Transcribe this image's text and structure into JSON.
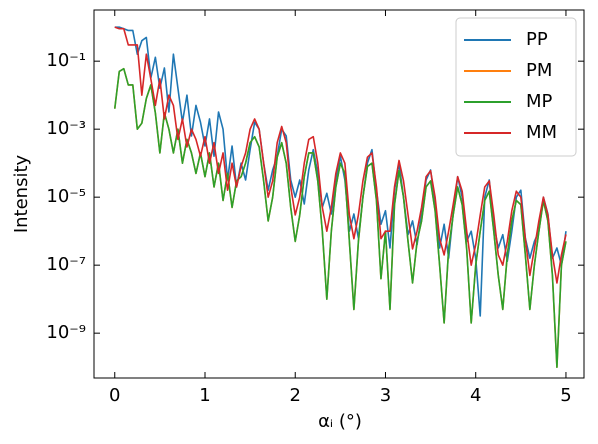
{
  "chart_data": {
    "type": "line",
    "xlabel": "αᵢ (°)",
    "ylabel": "Intensity",
    "log_y": true,
    "legend": "upper right",
    "x": [
      0,
      0.05,
      0.1,
      0.15,
      0.2,
      0.25,
      0.3,
      0.35,
      0.4,
      0.45,
      0.5,
      0.55,
      0.6,
      0.65,
      0.7,
      0.75,
      0.8,
      0.85,
      0.9,
      0.95,
      1,
      1.05,
      1.1,
      1.15,
      1.2,
      1.25,
      1.3,
      1.35,
      1.4,
      1.45,
      1.5,
      1.55,
      1.6,
      1.65,
      1.7,
      1.75,
      1.8,
      1.85,
      1.9,
      1.95,
      2,
      2.05,
      2.1,
      2.15,
      2.2,
      2.25,
      2.3,
      2.35,
      2.4,
      2.45,
      2.5,
      2.55,
      2.6,
      2.65,
      2.7,
      2.75,
      2.8,
      2.85,
      2.9,
      2.95,
      3,
      3.05,
      3.1,
      3.15,
      3.2,
      3.25,
      3.3,
      3.35,
      3.4,
      3.45,
      3.5,
      3.55,
      3.6,
      3.65,
      3.7,
      3.75,
      3.8,
      3.85,
      3.9,
      3.95,
      4,
      4.05,
      4.1,
      4.15,
      4.2,
      4.25,
      4.3,
      4.35,
      4.4,
      4.45,
      4.5,
      4.55,
      4.6,
      4.65,
      4.7,
      4.75,
      4.8,
      4.85,
      4.9,
      4.95,
      5
    ],
    "series": [
      {
        "name": "PP",
        "color": "#1f77b4",
        "values": [
          1,
          1,
          0.9,
          0.8,
          0.8,
          0.16,
          0.4,
          0.5,
          0.032,
          0.13,
          0.016,
          0.063,
          0.0032,
          0.16,
          0.016,
          0.0016,
          0.01,
          0.00063,
          0.005,
          0.0016,
          0.00032,
          0.002,
          0.00016,
          0.0032,
          0.001,
          3.2e-05,
          0.00032,
          2e-05,
          0.0001,
          3.2e-05,
          0.00025,
          0.0016,
          0.001,
          0.0001,
          1.6e-05,
          6.3e-05,
          0.00016,
          0.001,
          0.00063,
          3.2e-05,
          1e-05,
          3.2e-05,
          6.3e-06,
          6.3e-05,
          0.00025,
          5e-05,
          5e-06,
          1.3e-05,
          3.2e-06,
          3.2e-05,
          0.00016,
          3.2e-05,
          1e-06,
          3.2e-06,
          6.3e-07,
          1e-05,
          0.0001,
          0.00025,
          1.6e-05,
          1.6e-06,
          4e-06,
          3.2e-07,
          1.6e-05,
          0.0001,
          1e-05,
          7.9e-07,
          2e-06,
          4e-07,
          3.2e-06,
          3.2e-05,
          6.3e-05,
          6.3e-06,
          3.2e-07,
          1.6e-06,
          1.6e-07,
          3.2e-06,
          4e-05,
          1e-05,
          5e-07,
          1e-06,
          1.6e-07,
          3.2e-09,
          1e-05,
          3.2e-05,
          1.6e-06,
          3.2e-07,
          7.9e-07,
          1.3e-07,
          1e-06,
          1e-05,
          1.6e-05,
          6.3e-07,
          1.6e-07,
          5e-07,
          1e-06,
          1e-05,
          3.2e-06,
          1.6e-07,
          3.2e-07,
          1e-07,
          1e-06
        ]
      },
      {
        "name": "PM",
        "color": "#ff7f0e",
        "values": [
          0.004,
          0.05,
          0.06,
          0.02,
          0.02,
          0.001,
          0.0015,
          0.008,
          0.02,
          0.003,
          0.0002,
          0.003,
          0.001,
          0.0002,
          0.001,
          0.0001,
          0.0005,
          0.0002,
          5e-05,
          0.0002,
          4e-05,
          0.0002,
          2e-05,
          0.0001,
          8e-06,
          5e-05,
          5e-06,
          3e-05,
          4e-05,
          0.0001,
          0.0004,
          0.0006,
          0.0003,
          3e-05,
          2e-06,
          1e-05,
          0.00015,
          0.0004,
          0.0001,
          5e-06,
          5e-07,
          3e-06,
          4e-05,
          0.0002,
          0.0002,
          3e-05,
          1e-06,
          1e-08,
          1e-06,
          2e-05,
          0.0001,
          5e-05,
          5e-07,
          5e-09,
          5e-07,
          1e-05,
          8e-05,
          0.0001,
          8e-06,
          4e-08,
          1e-06,
          5e-09,
          6e-06,
          6e-05,
          1e-05,
          5e-07,
          3e-08,
          5e-07,
          2e-06,
          2e-05,
          3e-05,
          4e-06,
          1e-07,
          2e-09,
          3e-07,
          3e-06,
          2e-05,
          6e-06,
          3e-07,
          2e-09,
          1e-07,
          1e-06,
          8e-06,
          1.5e-05,
          1e-06,
          5e-08,
          5e-09,
          2e-07,
          2e-06,
          8e-06,
          6e-06,
          2e-07,
          5e-09,
          1e-07,
          1e-06,
          8e-06,
          2e-06,
          5e-08,
          1e-10,
          1e-07,
          5e-07
        ]
      },
      {
        "name": "MP",
        "color": "#2ca02c",
        "values": [
          0.004,
          0.05,
          0.06,
          0.02,
          0.02,
          0.001,
          0.0015,
          0.008,
          0.02,
          0.003,
          0.0002,
          0.003,
          0.001,
          0.0002,
          0.001,
          0.0001,
          0.0005,
          0.0002,
          5e-05,
          0.0002,
          4e-05,
          0.0002,
          2e-05,
          0.0001,
          8e-06,
          5e-05,
          5e-06,
          3e-05,
          4e-05,
          0.0001,
          0.0004,
          0.0006,
          0.0003,
          3e-05,
          2e-06,
          1e-05,
          0.00015,
          0.0004,
          0.0001,
          5e-06,
          5e-07,
          3e-06,
          4e-05,
          0.0002,
          0.0002,
          3e-05,
          1e-06,
          1e-08,
          1e-06,
          2e-05,
          0.0001,
          5e-05,
          5e-07,
          5e-09,
          5e-07,
          1e-05,
          8e-05,
          0.0001,
          8e-06,
          4e-08,
          1e-06,
          5e-09,
          6e-06,
          6e-05,
          1e-05,
          5e-07,
          3e-08,
          5e-07,
          2e-06,
          2e-05,
          3e-05,
          4e-06,
          1e-07,
          2e-09,
          3e-07,
          3e-06,
          2e-05,
          6e-06,
          3e-07,
          2e-09,
          1e-07,
          1e-06,
          8e-06,
          1.5e-05,
          1e-06,
          5e-08,
          5e-09,
          2e-07,
          2e-06,
          8e-06,
          6e-06,
          2e-07,
          5e-09,
          1e-07,
          1e-06,
          8e-06,
          2e-06,
          5e-08,
          1e-10,
          1e-07,
          5e-07
        ]
      },
      {
        "name": "MM",
        "color": "#d62728",
        "values": [
          1,
          0.9,
          0.9,
          0.3,
          0.3,
          0.3,
          0.01,
          0.16,
          0.03,
          0.005,
          0.03,
          0.002,
          0.01,
          0.005,
          0.0005,
          0.002,
          0.0003,
          0.001,
          0.0005,
          0.00016,
          0.0006,
          0.0001,
          0.0004,
          5e-05,
          0.0002,
          1.6e-05,
          0.0001,
          2e-05,
          8e-05,
          0.0002,
          0.001,
          0.002,
          0.001,
          0.0001,
          1e-05,
          3e-05,
          0.0004,
          0.0012,
          0.0004,
          2e-05,
          3e-06,
          1e-05,
          0.0001,
          0.0005,
          0.0006,
          0.0001,
          5e-06,
          1e-06,
          5e-06,
          5e-05,
          0.0002,
          0.0001,
          3e-06,
          6e-07,
          3e-06,
          3e-05,
          0.00015,
          0.0002,
          2e-05,
          6e-07,
          1e-06,
          1e-06,
          2e-05,
          0.00012,
          3e-05,
          3e-06,
          3e-07,
          1e-06,
          5e-06,
          4e-05,
          6e-05,
          1e-05,
          6e-07,
          2e-07,
          1e-06,
          6e-06,
          4e-05,
          1.5e-05,
          1e-06,
          1e-07,
          4e-07,
          3e-06,
          2e-05,
          3e-05,
          3e-06,
          2e-07,
          1e-07,
          5e-07,
          4e-06,
          1.5e-05,
          1e-05,
          6e-07,
          5e-08,
          3e-07,
          2e-06,
          1e-05,
          3e-06,
          2e-07,
          3e-08,
          2e-07,
          8e-07
        ]
      }
    ],
    "xlim": [
      -0.23,
      5.2
    ],
    "ylim": [
      4.8e-11,
      3.2
    ],
    "xticks": [
      0,
      1,
      2,
      3,
      4,
      5
    ],
    "yticks": [
      {
        "value": 1e-09,
        "label": "10⁻⁹"
      },
      {
        "value": 1e-07,
        "label": "10⁻⁷"
      },
      {
        "value": 1e-05,
        "label": "10⁻⁵"
      },
      {
        "value": 0.001,
        "label": "10⁻³"
      },
      {
        "value": 0.1,
        "label": "10⁻¹"
      }
    ]
  }
}
